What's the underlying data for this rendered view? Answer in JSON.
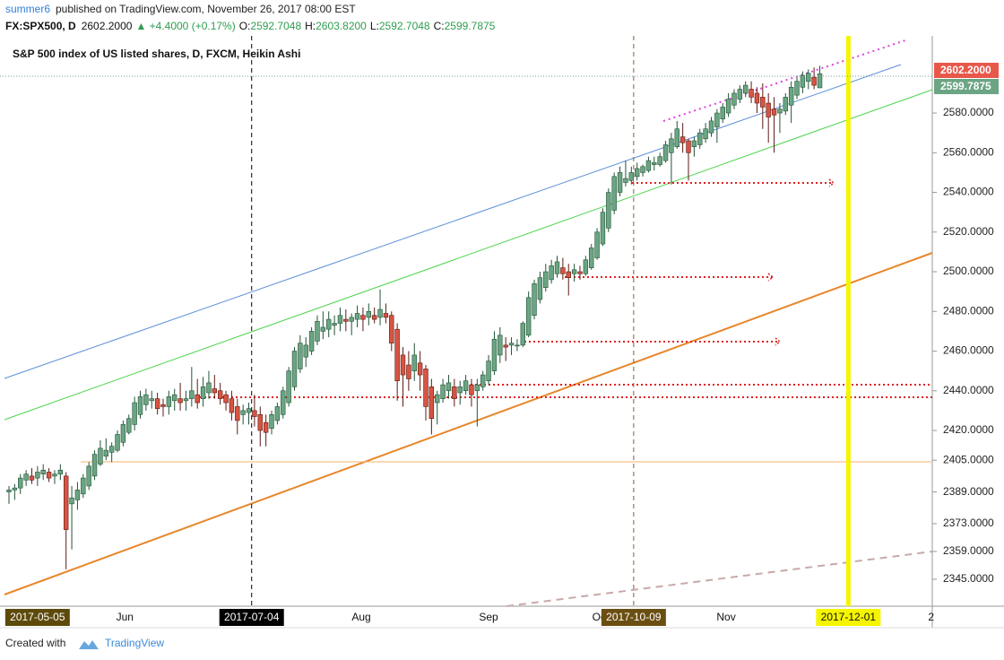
{
  "header": {
    "author": "summer6",
    "published": "published on TradingView.com, November 26, 2017 08:00 EST",
    "symbol": "FX:SPX500, D",
    "last": "2602.2000",
    "change": "▲ +4.4000 (+0.17%)",
    "ohlc": [
      {
        "key": "O:",
        "value": "2592.7048"
      },
      {
        "key": "H:",
        "value": "2603.8200"
      },
      {
        "key": "L:",
        "value": "2592.7048"
      },
      {
        "key": "C:",
        "value": "2599.7875"
      }
    ]
  },
  "footer": {
    "created": "Created with",
    "brand": "TradingView"
  },
  "chart_data": {
    "type": "candlestick",
    "title": "S&P 500 index of US listed shares, D, FXCM, Heikin Ashi",
    "up_color": "#6ba583",
    "down_color": "#d75442",
    "xlim": [
      -1.57,
      161.7
    ],
    "xticks": [
      {
        "value": 5,
        "label": "2017-05-05"
      },
      {
        "value": 20.3,
        "label": "Jun"
      },
      {
        "value": 42.5,
        "label": "2017-07-04"
      },
      {
        "value": 61.7,
        "label": "Aug"
      },
      {
        "value": 84,
        "label": "Sep"
      },
      {
        "value": 103.6,
        "label": "Oct"
      },
      {
        "value": 109.4,
        "label": "2017-10-09"
      },
      {
        "value": 125.6,
        "label": "Nov"
      },
      {
        "value": 147,
        "label": "2017-12-01"
      },
      {
        "value": 161.5,
        "label": "2"
      }
    ],
    "xtick_highlights": [
      "#5d4a0b",
      null,
      "#000000",
      null,
      null,
      null,
      "#6b4f12",
      null,
      "#f5f500",
      null
    ],
    "ylim": [
      2331.4,
      2618.9
    ],
    "yticks": [
      {
        "value": 2580,
        "label": "2580.0000"
      },
      {
        "value": 2560,
        "label": "2560.0000"
      },
      {
        "value": 2540,
        "label": "2540.0000"
      },
      {
        "value": 2520,
        "label": "2520.0000"
      },
      {
        "value": 2500,
        "label": "2500.0000"
      },
      {
        "value": 2480,
        "label": "2480.0000"
      },
      {
        "value": 2460,
        "label": "2460.0000"
      },
      {
        "value": 2440,
        "label": "2440.0000"
      },
      {
        "value": 2420,
        "label": "2420.0000"
      },
      {
        "value": 2405,
        "label": "2405.0000"
      },
      {
        "value": 2389,
        "label": "2389.0000"
      },
      {
        "value": 2373,
        "label": "2373.0000"
      },
      {
        "value": 2359,
        "label": "2359.0000"
      },
      {
        "value": 2345,
        "label": "2345.0000"
      }
    ],
    "price_labels": [
      {
        "value": 2602.2,
        "label": "2602.2000",
        "color": "#e8584a"
      },
      {
        "value": 2599.7875,
        "label": "2599.7875",
        "color": "#6ba583"
      }
    ],
    "open": [
      2389,
      2390,
      2391,
      2395,
      2397,
      2396,
      2398,
      2399,
      2397,
      2398,
      2397,
      2383,
      2385,
      2388,
      2392,
      2397,
      2403,
      2407,
      2409,
      2410,
      2414,
      2419,
      2423,
      2428,
      2433,
      2435,
      2436,
      2433,
      2432,
      2435,
      2436,
      2435,
      2436,
      2438,
      2436,
      2439,
      2441,
      2440,
      2438,
      2436,
      2432,
      2428,
      2429,
      2430,
      2428,
      2424,
      2421,
      2425,
      2428,
      2434,
      2442,
      2451,
      2457,
      2460,
      2465,
      2470,
      2471,
      2473,
      2474,
      2476,
      2475,
      2476,
      2478,
      2477,
      2478,
      2477,
      2479,
      2478,
      2471,
      2458,
      2453,
      2450,
      2454,
      2451,
      2442,
      2434,
      2436,
      2440,
      2442,
      2439,
      2440,
      2443,
      2440,
      2442,
      2445,
      2450,
      2458,
      2463,
      2463,
      2463,
      2463,
      2468,
      2478,
      2486,
      2492,
      2496,
      2499,
      2502,
      2500,
      2499,
      2500,
      2499,
      2502,
      2507,
      2514,
      2522,
      2531,
      2540,
      2545,
      2546,
      2548,
      2550,
      2551,
      2554,
      2554,
      2556,
      2560,
      2563,
      2568,
      2566,
      2563,
      2564,
      2567,
      2570,
      2573,
      2577,
      2580,
      2584,
      2587,
      2590,
      2592,
      2590,
      2588,
      2585,
      2582,
      2580,
      2581,
      2584,
      2589,
      2593,
      2596,
      2598,
      2592.7048
    ],
    "high": [
      2392,
      2393,
      2398,
      2400,
      2401,
      2402,
      2403,
      2401,
      2400,
      2403,
      2399,
      2392,
      2394,
      2398,
      2404,
      2410,
      2415,
      2416,
      2414,
      2420,
      2425,
      2428,
      2437,
      2440,
      2441,
      2440,
      2439,
      2436,
      2440,
      2441,
      2444,
      2440,
      2452,
      2446,
      2447,
      2450,
      2448,
      2444,
      2440,
      2440,
      2436,
      2433,
      2434,
      2438,
      2432,
      2428,
      2430,
      2434,
      2442,
      2452,
      2462,
      2468,
      2467,
      2472,
      2478,
      2480,
      2480,
      2478,
      2482,
      2481,
      2479,
      2483,
      2482,
      2484,
      2482,
      2491,
      2484,
      2480,
      2474,
      2462,
      2460,
      2464,
      2460,
      2453,
      2446,
      2440,
      2446,
      2448,
      2446,
      2445,
      2448,
      2446,
      2446,
      2450,
      2458,
      2470,
      2472,
      2467,
      2467,
      2466,
      2475,
      2490,
      2496,
      2500,
      2504,
      2506,
      2508,
      2507,
      2504,
      2504,
      2503,
      2508,
      2514,
      2522,
      2532,
      2542,
      2550,
      2553,
      2556,
      2553,
      2555,
      2554,
      2558,
      2558,
      2560,
      2566,
      2570,
      2576,
      2575,
      2567,
      2568,
      2572,
      2575,
      2578,
      2582,
      2585,
      2590,
      2592,
      2594,
      2596,
      2596,
      2593,
      2595,
      2590,
      2588,
      2585,
      2590,
      2596,
      2598,
      2601,
      2602,
      2603,
      2603.82
    ],
    "low": [
      2383,
      2385,
      2388,
      2392,
      2393,
      2392,
      2395,
      2394,
      2393,
      2395,
      2350,
      2360,
      2380,
      2386,
      2390,
      2395,
      2402,
      2405,
      2404,
      2409,
      2412,
      2418,
      2420,
      2426,
      2430,
      2431,
      2428,
      2427,
      2428,
      2430,
      2430,
      2430,
      2432,
      2431,
      2432,
      2436,
      2436,
      2433,
      2430,
      2425,
      2418,
      2423,
      2423,
      2422,
      2412,
      2412,
      2418,
      2423,
      2426,
      2432,
      2440,
      2449,
      2452,
      2458,
      2463,
      2466,
      2467,
      2468,
      2470,
      2470,
      2468,
      2472,
      2470,
      2473,
      2474,
      2473,
      2474,
      2460,
      2435,
      2432,
      2440,
      2445,
      2440,
      2425,
      2418,
      2423,
      2434,
      2436,
      2432,
      2433,
      2438,
      2432,
      2422,
      2440,
      2443,
      2448,
      2454,
      2455,
      2458,
      2460,
      2462,
      2467,
      2476,
      2484,
      2490,
      2494,
      2497,
      2496,
      2488,
      2495,
      2496,
      2498,
      2501,
      2506,
      2513,
      2520,
      2529,
      2538,
      2543,
      2544,
      2546,
      2548,
      2550,
      2551,
      2553,
      2555,
      2544,
      2562,
      2560,
      2546,
      2558,
      2562,
      2565,
      2568,
      2565,
      2575,
      2578,
      2582,
      2585,
      2588,
      2585,
      2580,
      2572,
      2565,
      2560,
      2570,
      2579,
      2575,
      2587,
      2590,
      2592,
      2592,
      2592.7048
    ],
    "close": [
      2390,
      2391,
      2396,
      2398,
      2395,
      2399,
      2400,
      2396,
      2398,
      2400,
      2370,
      2386,
      2390,
      2396,
      2402,
      2408,
      2411,
      2410,
      2412,
      2418,
      2423,
      2426,
      2434,
      2437,
      2438,
      2436,
      2431,
      2432,
      2437,
      2438,
      2434,
      2436,
      2440,
      2434,
      2442,
      2444,
      2439,
      2436,
      2434,
      2429,
      2425,
      2430,
      2431,
      2427,
      2420,
      2419,
      2428,
      2432,
      2440,
      2450,
      2460,
      2464,
      2463,
      2470,
      2475,
      2472,
      2476,
      2474,
      2478,
      2475,
      2477,
      2479,
      2476,
      2480,
      2476,
      2481,
      2477,
      2464,
      2445,
      2448,
      2446,
      2458,
      2448,
      2432,
      2426,
      2438,
      2443,
      2444,
      2436,
      2442,
      2445,
      2438,
      2443,
      2448,
      2455,
      2466,
      2468,
      2462,
      2464,
      2463,
      2474,
      2487,
      2494,
      2497,
      2500,
      2503,
      2505,
      2499,
      2497,
      2501,
      2499,
      2506,
      2512,
      2520,
      2530,
      2540,
      2548,
      2550,
      2547,
      2550,
      2552,
      2553,
      2556,
      2555,
      2558,
      2564,
      2567,
      2572,
      2565,
      2560,
      2566,
      2570,
      2572,
      2576,
      2580,
      2583,
      2587,
      2590,
      2592,
      2594,
      2588,
      2585,
      2583,
      2578,
      2579,
      2582,
      2588,
      2593,
      2596,
      2599,
      2600,
      2594,
      2599.7875
    ]
  }
}
